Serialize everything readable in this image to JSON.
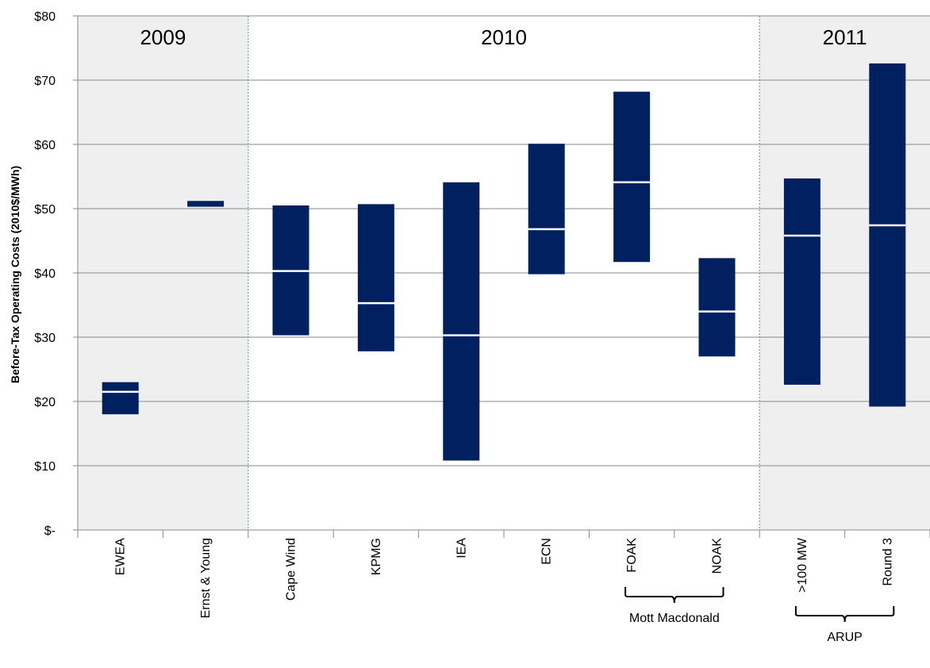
{
  "chart_data": {
    "type": "bar",
    "subtype": "floating-range",
    "ylabel": "Before-Tax Operating Costs (2010$/MWh)",
    "ylim": [
      0,
      80
    ],
    "yticks": [
      0,
      10,
      20,
      30,
      40,
      50,
      60,
      70,
      80
    ],
    "ytick_labels": [
      "$-",
      "$10",
      "$20",
      "$30",
      "$40",
      "$50",
      "$60",
      "$70",
      "$80"
    ],
    "grid": true,
    "categories": [
      "EWEA",
      "Ernst & Young",
      "Cape Wind",
      "KPMG",
      "IEA",
      "ECN",
      "FOAK",
      "NOAK",
      ">100 MW",
      "Round 3"
    ],
    "series": [
      {
        "low": [
          18.0,
          50.3,
          30.3,
          27.8,
          10.8,
          39.8,
          41.7,
          27.0,
          22.6,
          19.2
        ],
        "high": [
          23.0,
          51.2,
          50.5,
          50.7,
          54.1,
          60.1,
          68.2,
          42.3,
          54.7,
          72.6
        ],
        "midpoint": [
          21.5,
          null,
          40.3,
          35.3,
          30.3,
          46.8,
          54.1,
          34.0,
          45.8,
          47.4
        ]
      }
    ],
    "year_groups": [
      {
        "label": "2009",
        "from": 0,
        "to": 1,
        "shaded": true
      },
      {
        "label": "2010",
        "from": 2,
        "to": 7,
        "shaded": false
      },
      {
        "label": "2011",
        "from": 8,
        "to": 9,
        "shaded": true
      }
    ],
    "brackets": [
      {
        "label": "Mott Macdonald",
        "from": 6,
        "to": 7
      },
      {
        "label": "ARUP",
        "from": 8,
        "to": 9
      }
    ],
    "colors": {
      "bar": "#002060",
      "midline": "#ffffff",
      "shade": "#efefef",
      "grid": "#888888",
      "divider": "#4a8ec8"
    }
  }
}
